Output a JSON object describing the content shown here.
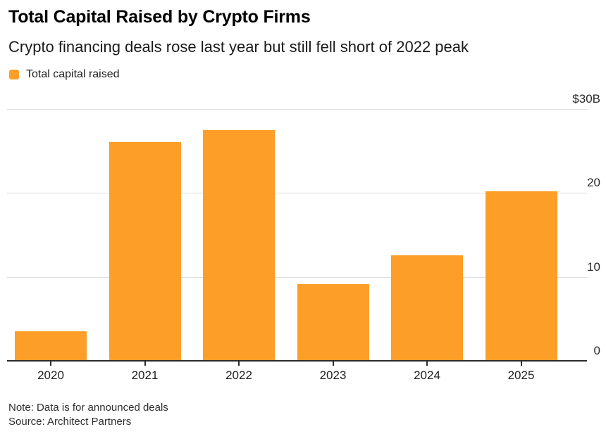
{
  "header": {
    "title": "Total Capital Raised by Crypto Firms",
    "subtitle": "Crypto financing deals rose last year but still fell short of 2022 peak"
  },
  "legend": {
    "items": [
      {
        "label": "Total capital raised",
        "color": "#FC9E28"
      }
    ]
  },
  "chart_data": {
    "type": "bar",
    "title": "Total Capital Raised by Crypto Firms",
    "subtitle": "Crypto financing deals rose last year but still fell short of 2022 peak",
    "categories": [
      "2020",
      "2021",
      "2022",
      "2023",
      "2024",
      "2025"
    ],
    "series": [
      {
        "name": "Total capital raised",
        "values": [
          3.5,
          26.1,
          27.5,
          9.1,
          12.6,
          20.2
        ],
        "color": "#FC9E28"
      }
    ],
    "unit": "USD billions",
    "ylim": [
      0,
      30
    ],
    "y_ticks": [
      {
        "value": 30,
        "label": "$30B"
      },
      {
        "value": 20,
        "label": "20"
      },
      {
        "value": 10,
        "label": "10"
      },
      {
        "value": 0,
        "label": "0"
      }
    ],
    "grid": "horizontal",
    "legend_position": "top-left",
    "y_axis_side": "right"
  },
  "footer": {
    "note": "Note: Data is for announced deals",
    "source": "Source: Architect Partners"
  },
  "colors": {
    "bar": "#FC9E28",
    "grid": "#DDDDDD",
    "axis": "#2B2B2B",
    "background": "#FFFFFF"
  }
}
